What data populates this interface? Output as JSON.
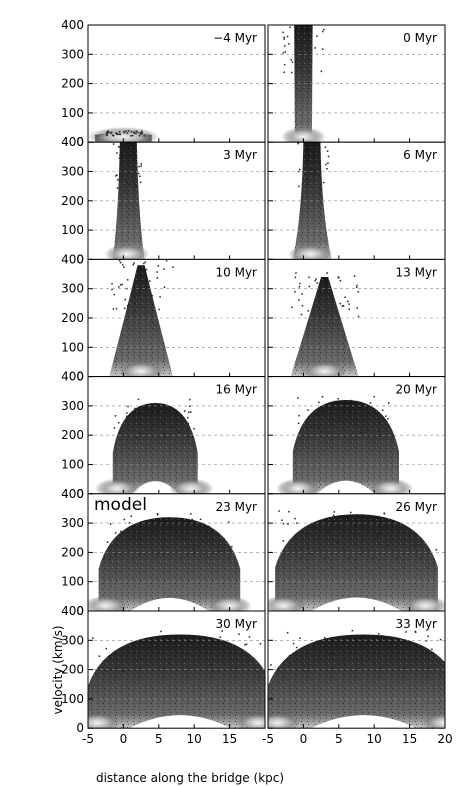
{
  "chart_data": {
    "type": "heatmap",
    "description_units": {
      "x": "kpc",
      "y": "km/s"
    },
    "xlabel": "distance along the bridge (kpc)",
    "ylabel": "velocity (km/s)",
    "xlim_left": [
      -5,
      20
    ],
    "xlim_right": [
      -5,
      20
    ],
    "ylim": [
      0,
      400
    ],
    "x_ticks_left": [
      "-5",
      "0",
      "5",
      "10",
      "15"
    ],
    "x_ticks_right": [
      "-5",
      "0",
      "5",
      "10",
      "15",
      "20"
    ],
    "y_ticks": [
      "0",
      "100",
      "200",
      "300",
      "400"
    ],
    "grid": "dashed horizontal at 100, 200, 300",
    "colormap": "grayscale",
    "annotation": "model",
    "panels": [
      {
        "label": "−4 Myr",
        "time": -4,
        "shape": "thin-disk",
        "x_center": 0,
        "half_width": 3,
        "top": 40
      },
      {
        "label": "0 Myr",
        "time": 0,
        "shape": "column",
        "x_center": 0,
        "half_width": 3,
        "top": 400
      },
      {
        "label": "3 Myr",
        "time": 3,
        "shape": "column-flared",
        "x_center": 0.5,
        "half_width": 2,
        "top": 400
      },
      {
        "label": "6 Myr",
        "time": 6,
        "shape": "column-flared",
        "x_center": 1.0,
        "half_width": 2.5,
        "top": 400
      },
      {
        "label": "10 Myr",
        "time": 10,
        "shape": "cone",
        "x_center": 2.5,
        "half_width": 4.5,
        "top": 380
      },
      {
        "label": "13 Myr",
        "time": 13,
        "shape": "cone",
        "x_center": 3.0,
        "half_width": 4.8,
        "top": 340
      },
      {
        "label": "16 Myr",
        "time": 16,
        "shape": "arch",
        "x_center": 4.5,
        "half_width": 6.0,
        "top": 310
      },
      {
        "label": "20 Myr",
        "time": 20,
        "shape": "arch",
        "x_center": 6.0,
        "half_width": 7.5,
        "top": 320
      },
      {
        "label": "23 Myr",
        "time": 23,
        "shape": "arch",
        "x_center": 6.5,
        "half_width": 10.0,
        "top": 320
      },
      {
        "label": "26 Myr",
        "time": 26,
        "shape": "arch",
        "x_center": 7.5,
        "half_width": 11.5,
        "top": 330
      },
      {
        "label": "30 Myr",
        "time": 30,
        "shape": "arch",
        "x_center": 8.0,
        "half_width": 13.0,
        "top": 320
      },
      {
        "label": "33 Myr",
        "time": 33,
        "shape": "arch",
        "x_center": 8.5,
        "half_width": 13.5,
        "top": 320
      }
    ]
  }
}
